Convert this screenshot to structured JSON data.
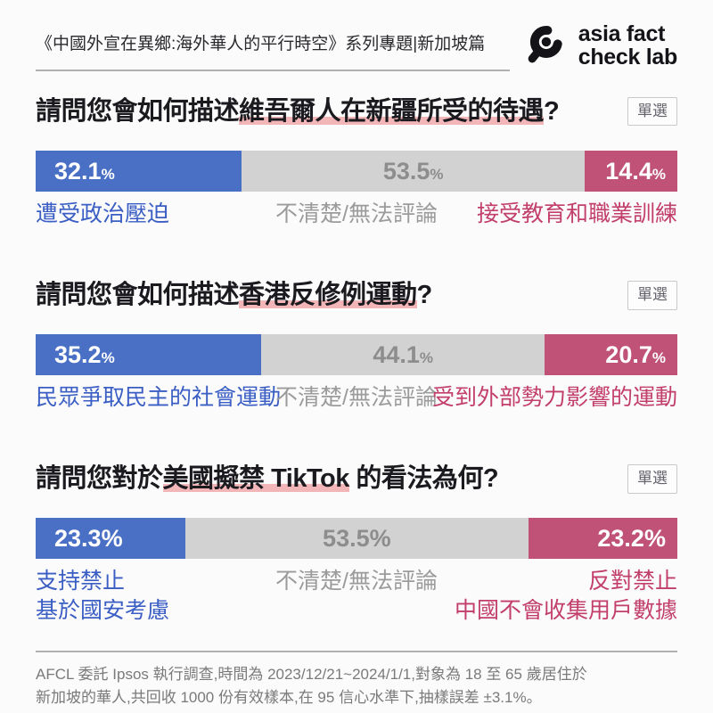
{
  "header": {
    "title": "《中國外宣在異鄉:海外華人的平行時空》系列專題|新加坡篇",
    "logo": {
      "icon": "magnifier-logo-icon",
      "line1": "asia fact",
      "line2": "check lab"
    }
  },
  "ui": {
    "pct_sign": "%"
  },
  "colors": {
    "blue_bar": "#4a70c5",
    "gray_bar": "#d2d2d3",
    "rose_bar": "#bf5276",
    "blue_text": "#3a5ec3",
    "gray_text": "#9b9b9b",
    "rose_text": "#c23e6b",
    "pct_gray": "#8d8d8d",
    "underline": "#f2b5b8",
    "divider": "#b0b0b0",
    "footer_text": "#7a7a7a",
    "badge_text": "#63636b",
    "badge_border": "#c9c9c9",
    "logo_black": "#141418"
  },
  "chart_data": [
    {
      "type": "bar",
      "question_pre": "請問您會如何描述",
      "question_mark": "維吾爾人在新疆所受的待遇",
      "question_post": "?",
      "badge": "單選",
      "axis": "percent of respondents, segments sum to 100",
      "segments": [
        {
          "name": "遭受政治壓迫",
          "value": 32.1
        },
        {
          "name": "不清楚/無法評論",
          "value": 53.5
        },
        {
          "name": "接受教育和職業訓練",
          "value": 14.4
        }
      ]
    },
    {
      "type": "bar",
      "question_pre": "請問您會如何描述",
      "question_mark": "香港反修例運動",
      "question_post": "?",
      "badge": "單選",
      "axis": "percent of respondents, segments sum to 100",
      "segments": [
        {
          "name": "民眾爭取民主的社會運動",
          "value": 35.2
        },
        {
          "name": "不清楚/無法評論",
          "value": 44.1
        },
        {
          "name": "受到外部勢力影響的運動",
          "value": 20.7
        }
      ]
    },
    {
      "type": "bar",
      "question_pre": "請問您對於",
      "question_mark": "美國擬禁 TikTok",
      "question_post": " 的看法為何?",
      "badge": "單選",
      "axis": "percent of respondents, segments sum to 100",
      "segments": [
        {
          "name": "支持禁止\n基於國安考慮",
          "value": 23.3
        },
        {
          "name": "不清楚/無法評論",
          "value": 53.5
        },
        {
          "name": "反對禁止\n中國不會收集用戶數據",
          "value": 23.2
        }
      ]
    }
  ],
  "footer": {
    "lines": [
      "AFCL 委託 Ipsos 執行調查,時間為 2023/12/21~2024/1/1,對象為 18 至 65 歲居住於",
      "新加坡的華人,共回收 1000 份有效樣本,在 95 信心水準下,抽樣誤差 ±3.1%。"
    ]
  }
}
